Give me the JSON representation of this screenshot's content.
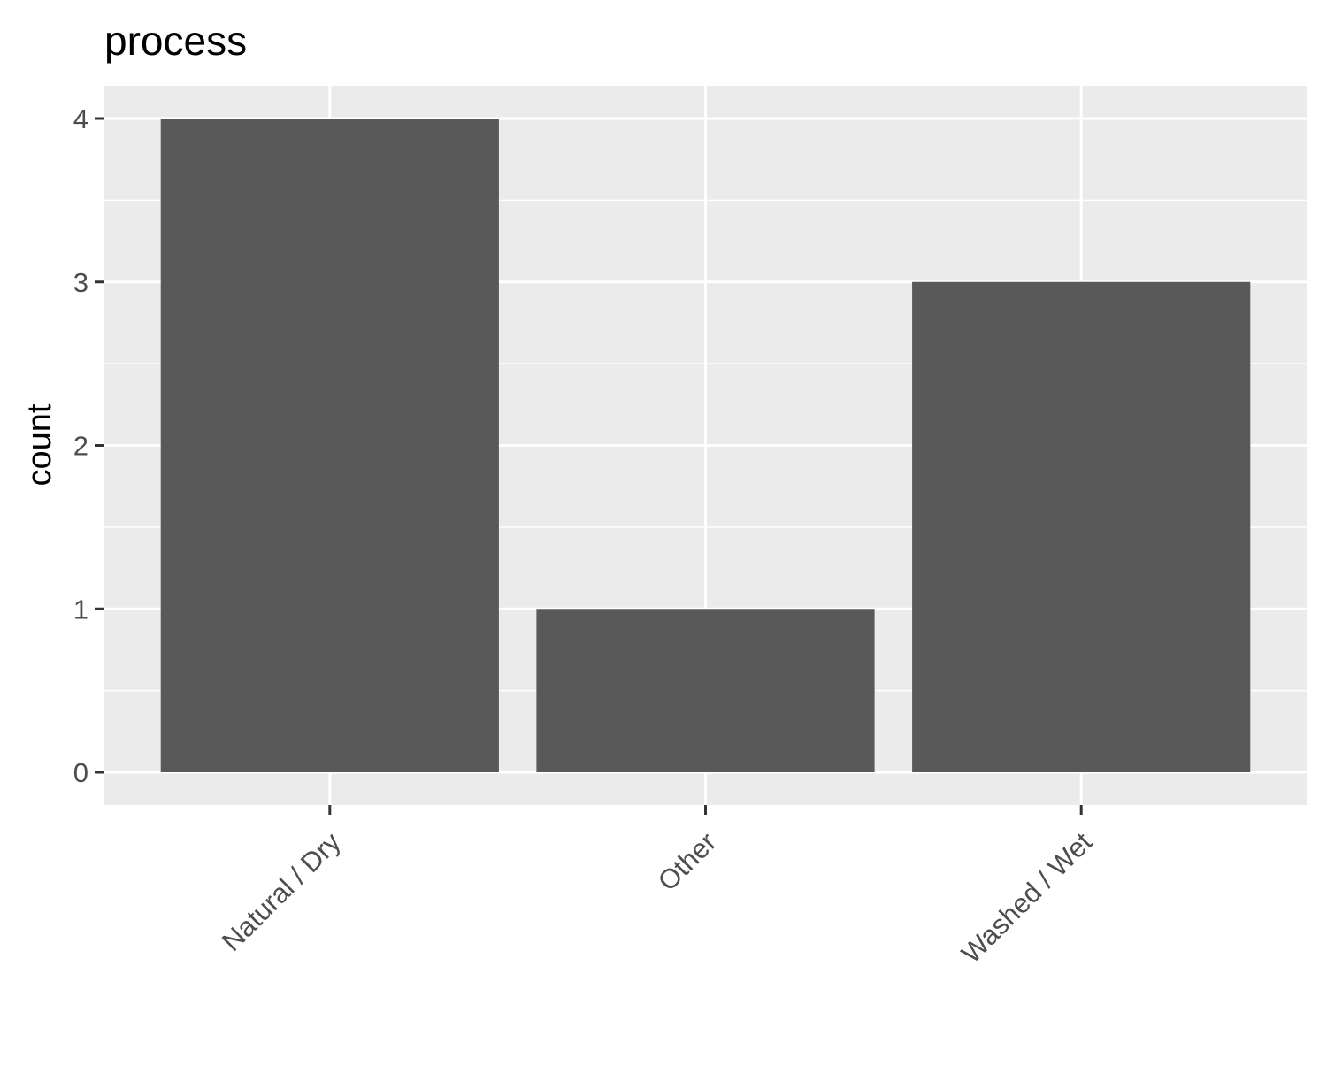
{
  "chart_data": {
    "type": "bar",
    "title": "process",
    "xlabel": "",
    "ylabel": "count",
    "categories": [
      "Natural / Dry",
      "Other",
      "Washed / Wet"
    ],
    "values": [
      4,
      1,
      3
    ],
    "ylim": [
      0,
      4.2
    ],
    "yticks": [
      "0",
      "1",
      "2",
      "3",
      "4"
    ],
    "grid": true,
    "legend": "none",
    "colors": {
      "panel": "#EBEBEB",
      "bar": "#595959",
      "grid": "#FFFFFF",
      "tick": "#333333",
      "tick_label": "#4D4D4D"
    }
  }
}
